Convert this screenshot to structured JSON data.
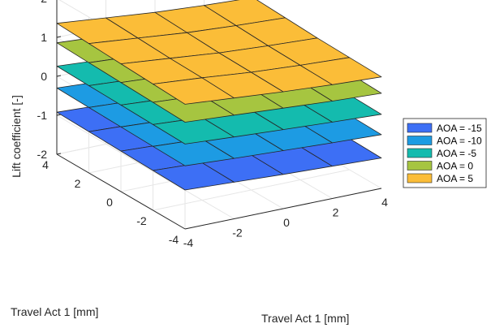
{
  "chart_data": {
    "type": "surface",
    "title": "",
    "xlabel": "Travel Act 1 [mm]",
    "ylabel": "Travel Act 1 [mm]",
    "zlabel": "Lift coefficient [-]",
    "xlim": [
      -4,
      4
    ],
    "ylim": [
      -4,
      4
    ],
    "zlim": [
      -2,
      2
    ],
    "x_ticks": [
      "-4",
      "-2",
      "0",
      "2",
      "4"
    ],
    "y_ticks": [
      "-4",
      "-2",
      "0",
      "2",
      "4"
    ],
    "z_ticks": [
      "-2",
      "-1",
      "0",
      "1",
      "2"
    ],
    "grid": true,
    "legend_position": "right",
    "grid_points": [
      -4,
      -2,
      0,
      2,
      4
    ],
    "series": [
      {
        "name": "AOA = -15",
        "color": "#3d6ff5",
        "z": [
          [
            -1.0,
            -1.06,
            -1.12,
            -1.17,
            -1.22
          ],
          [
            -0.98,
            -1.04,
            -1.1,
            -1.15,
            -1.2
          ],
          [
            -0.96,
            -1.02,
            -1.08,
            -1.13,
            -1.18
          ],
          [
            -0.94,
            -1.0,
            -1.06,
            -1.11,
            -1.16
          ],
          [
            -0.92,
            -0.98,
            -1.04,
            -1.09,
            -1.14
          ]
        ]
      },
      {
        "name": "AOA = -10",
        "color": "#1d9be3",
        "z": [
          [
            -0.38,
            -0.45,
            -0.51,
            -0.57,
            -0.62
          ],
          [
            -0.36,
            -0.43,
            -0.49,
            -0.55,
            -0.6
          ],
          [
            -0.34,
            -0.41,
            -0.47,
            -0.53,
            -0.58
          ],
          [
            -0.32,
            -0.39,
            -0.45,
            -0.51,
            -0.56
          ],
          [
            -0.3,
            -0.37,
            -0.43,
            -0.49,
            -0.54
          ]
        ]
      },
      {
        "name": "AOA = -5",
        "color": "#14bbae",
        "z": [
          [
            0.18,
            0.1,
            0.03,
            -0.04,
            -0.1
          ],
          [
            0.2,
            0.12,
            0.05,
            -0.02,
            -0.08
          ],
          [
            0.22,
            0.14,
            0.07,
            0.0,
            -0.06
          ],
          [
            0.24,
            0.16,
            0.09,
            0.02,
            -0.04
          ],
          [
            0.26,
            0.18,
            0.11,
            0.04,
            -0.02
          ]
        ]
      },
      {
        "name": "AOA = 0",
        "color": "#a6c540",
        "z": [
          [
            0.74,
            0.66,
            0.58,
            0.5,
            0.44
          ],
          [
            0.77,
            0.69,
            0.61,
            0.53,
            0.47
          ],
          [
            0.8,
            0.72,
            0.64,
            0.56,
            0.5
          ],
          [
            0.83,
            0.75,
            0.67,
            0.59,
            0.53
          ],
          [
            0.86,
            0.78,
            0.7,
            0.62,
            0.56
          ]
        ]
      },
      {
        "name": "AOA = 5",
        "color": "#fbbd38",
        "z": [
          [
            1.2,
            1.1,
            1.0,
            0.92,
            0.86
          ],
          [
            1.24,
            1.14,
            1.02,
            0.94,
            0.88
          ],
          [
            1.28,
            1.16,
            1.04,
            0.96,
            0.9
          ],
          [
            1.32,
            1.2,
            1.08,
            1.0,
            0.94
          ],
          [
            1.36,
            1.24,
            1.12,
            1.04,
            0.98
          ]
        ]
      }
    ]
  }
}
